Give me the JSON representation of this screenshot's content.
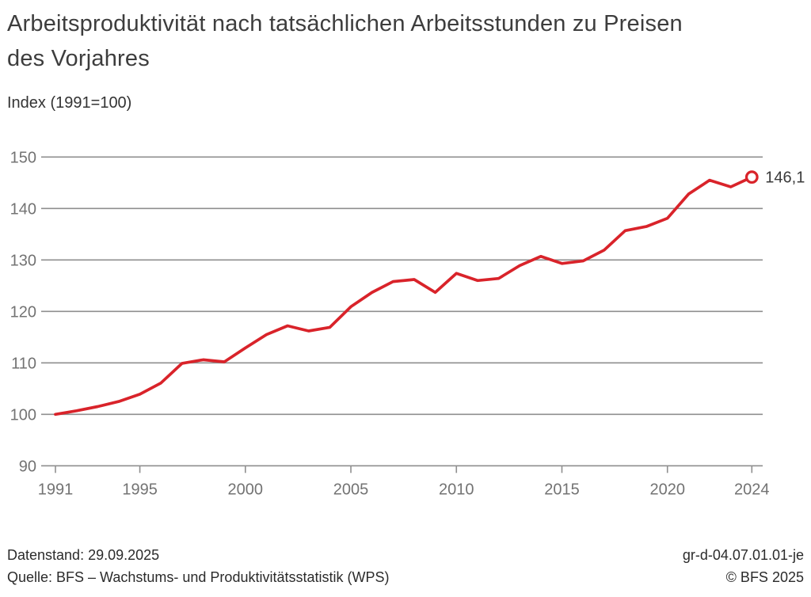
{
  "header": {
    "title": "Arbeitsproduktivität nach tatsächlichen Arbeitsstunden zu Preisen des Vorjahres",
    "subtitle": "Index (1991=100)"
  },
  "chart_data": {
    "type": "line",
    "title": "Arbeitsproduktivität nach tatsächlichen Arbeitsstunden zu Preisen des Vorjahres",
    "ylabel": "Index (1991=100)",
    "xlabel": "",
    "x": [
      1991,
      1992,
      1993,
      1994,
      1995,
      1996,
      1997,
      1998,
      1999,
      2000,
      2001,
      2002,
      2003,
      2004,
      2005,
      2006,
      2007,
      2008,
      2009,
      2010,
      2011,
      2012,
      2013,
      2014,
      2015,
      2016,
      2017,
      2018,
      2019,
      2020,
      2021,
      2022,
      2023,
      2024
    ],
    "series": [
      {
        "name": "Arbeitsproduktivität nach tatsächlichen Arbeitsstunden",
        "values": [
          100.0,
          100.7,
          101.5,
          102.5,
          103.9,
          106.1,
          109.9,
          110.6,
          110.2,
          112.9,
          115.5,
          117.2,
          116.2,
          116.9,
          120.9,
          123.7,
          125.8,
          126.2,
          123.7,
          127.4,
          126.0,
          126.4,
          128.9,
          130.7,
          129.3,
          129.8,
          131.9,
          135.7,
          136.5,
          138.1,
          142.8,
          145.5,
          144.2,
          146.1
        ]
      }
    ],
    "end_value": 146.1,
    "end_label": "146,1",
    "xlim": [
      1991,
      2024
    ],
    "ylim": [
      90,
      150
    ],
    "y_ticks": [
      90,
      100,
      110,
      120,
      130,
      140,
      150
    ],
    "x_ticks": [
      1991,
      1995,
      2000,
      2005,
      2010,
      2015,
      2020,
      2024
    ],
    "grid": "horizontal",
    "legend": "none"
  },
  "colors": {
    "line": "#d9232a",
    "marker_fill": "#ffffff",
    "grid": "#8f8f8f",
    "tick_text": "#737373",
    "end_label_text": "#3a3a3a",
    "title_text": "#3d3d3d",
    "footer_text": "#2b2b2b"
  },
  "footer": {
    "datenstand": "Datenstand: 29.09.2025",
    "quelle": "Quelle: BFS – Wachstums- und Produktivitätsstatistik (WPS)",
    "code": "gr-d-04.07.01.01-je",
    "copyright": "© BFS 2025"
  }
}
